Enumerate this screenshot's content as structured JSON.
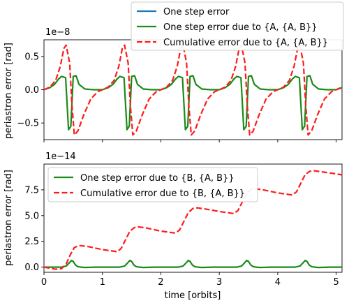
{
  "colors": {
    "blue": "#1f77b4",
    "green": "#1a8a1a",
    "red": "#ff1a1a"
  },
  "chart_data": [
    {
      "type": "line",
      "ylabel": "periastron error [rad]",
      "scale_label": "1e−8",
      "xlim": [
        0,
        5.1
      ],
      "ylim": [
        -0.75,
        0.75
      ],
      "yticks": [
        -0.5,
        0.0,
        0.5
      ],
      "ytick_labels": [
        "−0.5",
        "0.0",
        "0.5"
      ],
      "grid": false,
      "legend_position": "top-right",
      "series": [
        {
          "name": "One step error",
          "color": "blue",
          "style": "solid",
          "x": [],
          "y": []
        },
        {
          "name": "One step error due to {A, {A, B}}",
          "color": "green",
          "style": "solid",
          "x": [
            0,
            0.1,
            0.18,
            0.25,
            0.3,
            0.37,
            0.42,
            0.46,
            0.5,
            0.55,
            0.6,
            0.7,
            0.85,
            1.0,
            1.1,
            1.18,
            1.25,
            1.3,
            1.37,
            1.42,
            1.46,
            1.5,
            1.55,
            1.6,
            1.7,
            1.85,
            2.0,
            2.1,
            2.18,
            2.25,
            2.3,
            2.37,
            2.42,
            2.46,
            2.5,
            2.55,
            2.6,
            2.7,
            2.85,
            3.0,
            3.1,
            3.18,
            3.25,
            3.3,
            3.37,
            3.42,
            3.46,
            3.5,
            3.55,
            3.6,
            3.7,
            3.85,
            4.0,
            4.1,
            4.18,
            4.25,
            4.3,
            4.37,
            4.42,
            4.46,
            4.5,
            4.55,
            4.6,
            4.7,
            4.85,
            5.0,
            5.1
          ],
          "y": [
            0,
            0.03,
            0.08,
            0.16,
            0.2,
            0.18,
            -0.6,
            -0.55,
            0.2,
            0.21,
            0.08,
            0.01,
            0,
            0,
            0.03,
            0.08,
            0.16,
            0.2,
            0.18,
            -0.6,
            -0.55,
            0.2,
            0.21,
            0.08,
            0.01,
            0,
            0,
            0.03,
            0.08,
            0.16,
            0.2,
            0.18,
            -0.6,
            -0.55,
            0.2,
            0.21,
            0.08,
            0.01,
            0,
            0,
            0.03,
            0.08,
            0.16,
            0.2,
            0.18,
            -0.6,
            -0.55,
            0.2,
            0.21,
            0.08,
            0.01,
            0,
            0,
            0.03,
            0.08,
            0.16,
            0.2,
            0.18,
            -0.6,
            -0.55,
            0.2,
            0.21,
            0.08,
            0.01,
            0,
            0,
            0.03
          ]
        },
        {
          "name": "Cumulative error due to {A, {A, B}}",
          "color": "red",
          "style": "dashed",
          "x": [
            0,
            0.1,
            0.2,
            0.28,
            0.34,
            0.38,
            0.44,
            0.48,
            0.52,
            0.58,
            0.68,
            0.8,
            0.92,
            1.0,
            1.1,
            1.2,
            1.28,
            1.34,
            1.38,
            1.44,
            1.48,
            1.52,
            1.58,
            1.68,
            1.8,
            1.92,
            2.0,
            2.1,
            2.2,
            2.28,
            2.34,
            2.38,
            2.44,
            2.48,
            2.52,
            2.58,
            2.68,
            2.8,
            2.92,
            3.0,
            3.1,
            3.2,
            3.28,
            3.34,
            3.38,
            3.44,
            3.48,
            3.52,
            3.58,
            3.68,
            3.8,
            3.92,
            4.0,
            4.1,
            4.2,
            4.28,
            4.34,
            4.38,
            4.44,
            4.48,
            4.52,
            4.58,
            4.68,
            4.8,
            4.92,
            5.0,
            5.1
          ],
          "y": [
            0,
            0.04,
            0.14,
            0.35,
            0.62,
            0.67,
            0.4,
            -0.25,
            -0.68,
            -0.62,
            -0.38,
            -0.14,
            -0.03,
            0,
            0.04,
            0.14,
            0.35,
            0.62,
            0.67,
            0.4,
            -0.25,
            -0.68,
            -0.62,
            -0.38,
            -0.14,
            -0.03,
            0,
            0.04,
            0.14,
            0.35,
            0.62,
            0.67,
            0.4,
            -0.25,
            -0.68,
            -0.62,
            -0.38,
            -0.14,
            -0.03,
            0,
            0.04,
            0.14,
            0.35,
            0.62,
            0.67,
            0.4,
            -0.25,
            -0.68,
            -0.62,
            -0.38,
            -0.14,
            -0.03,
            0,
            0.04,
            0.14,
            0.35,
            0.62,
            0.67,
            0.4,
            -0.25,
            -0.68,
            -0.62,
            -0.38,
            -0.14,
            -0.03,
            0,
            0.04
          ]
        }
      ]
    },
    {
      "type": "line",
      "ylabel": "periastron error [rad]",
      "xlabel": "time [orbits]",
      "scale_label": "1e−14",
      "xlim": [
        0,
        5.1
      ],
      "ylim": [
        -0.5,
        10.0
      ],
      "xticks": [
        0,
        1,
        2,
        3,
        4,
        5
      ],
      "xtick_labels": [
        "0",
        "1",
        "2",
        "3",
        "4",
        "5"
      ],
      "yticks": [
        0.0,
        2.5,
        5.0,
        7.5
      ],
      "ytick_labels": [
        "0.0",
        "2.5",
        "5.0",
        "7.5"
      ],
      "grid": false,
      "legend_position": "top-left",
      "series": [
        {
          "name": "One step error due to {B, {A, B}}",
          "color": "green",
          "style": "solid",
          "x": [
            0,
            0.3,
            0.38,
            0.43,
            0.47,
            0.5,
            0.54,
            0.58,
            0.63,
            0.7,
            0.9,
            1.3,
            1.38,
            1.43,
            1.47,
            1.5,
            1.54,
            1.58,
            1.63,
            1.7,
            1.9,
            2.3,
            2.38,
            2.43,
            2.47,
            2.5,
            2.54,
            2.58,
            2.63,
            2.7,
            2.9,
            3.3,
            3.38,
            3.43,
            3.47,
            3.5,
            3.54,
            3.58,
            3.63,
            3.7,
            3.9,
            4.3,
            4.38,
            4.43,
            4.47,
            4.5,
            4.54,
            4.58,
            4.63,
            4.7,
            4.9,
            5.1
          ],
          "y": [
            0,
            0,
            0.1,
            0.4,
            0.65,
            0.55,
            0.2,
            0.05,
            0,
            -0.03,
            0,
            0,
            0.1,
            0.4,
            0.65,
            0.55,
            0.2,
            0.05,
            0,
            -0.03,
            0,
            0,
            0.1,
            0.4,
            0.65,
            0.55,
            0.2,
            0.05,
            0,
            -0.03,
            0,
            0,
            0.1,
            0.4,
            0.65,
            0.55,
            0.2,
            0.05,
            0,
            -0.03,
            0,
            0,
            0.1,
            0.4,
            0.65,
            0.55,
            0.2,
            0.05,
            0,
            -0.03,
            0,
            0
          ]
        },
        {
          "name": "Cumulative error due to {B, {A, B}}",
          "color": "red",
          "style": "dashed",
          "x": [
            0,
            0.1,
            0.2,
            0.3,
            0.38,
            0.45,
            0.52,
            0.6,
            0.75,
            1.0,
            1.25,
            1.32,
            1.4,
            1.47,
            1.55,
            1.62,
            1.75,
            2.0,
            2.25,
            2.32,
            2.4,
            2.47,
            2.55,
            2.62,
            2.75,
            3.0,
            3.25,
            3.32,
            3.4,
            3.47,
            3.55,
            3.62,
            3.75,
            4.0,
            4.25,
            4.32,
            4.4,
            4.47,
            4.55,
            4.62,
            4.75,
            5.0,
            5.1
          ],
          "y": [
            0,
            -0.1,
            -0.2,
            -0.15,
            0.3,
            1.2,
            1.9,
            2.1,
            2.0,
            1.7,
            1.5,
            1.8,
            2.7,
            3.5,
            3.85,
            3.9,
            3.8,
            3.5,
            3.3,
            3.6,
            4.5,
            5.3,
            5.7,
            5.75,
            5.65,
            5.4,
            5.2,
            5.5,
            6.4,
            7.2,
            7.55,
            7.6,
            7.5,
            7.2,
            7.0,
            7.3,
            8.2,
            9.0,
            9.3,
            9.35,
            9.25,
            9.05,
            8.95
          ]
        }
      ]
    }
  ]
}
